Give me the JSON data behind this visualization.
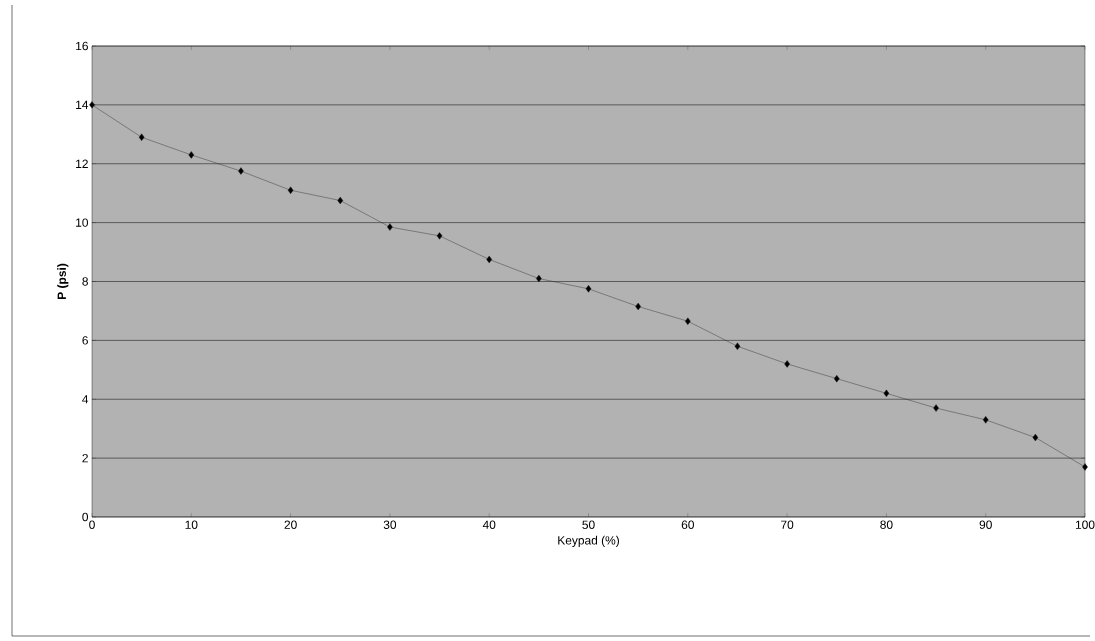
{
  "chart_data": {
    "type": "line",
    "xlabel": "Keypad (%)",
    "ylabel": "P (psi)",
    "x": [
      0,
      5,
      10,
      15,
      20,
      25,
      30,
      35,
      40,
      45,
      50,
      55,
      60,
      65,
      70,
      75,
      80,
      85,
      90,
      95,
      100
    ],
    "values": [
      14.0,
      12.9,
      12.3,
      11.75,
      11.1,
      10.75,
      9.85,
      9.55,
      8.75,
      8.1,
      7.75,
      7.15,
      6.65,
      5.8,
      5.2,
      4.7,
      4.2,
      3.7,
      3.3,
      2.7,
      1.7
    ],
    "color": "#222222",
    "marker": "diamond",
    "line_style": "solid",
    "grid": "y",
    "xlim": [
      0,
      100
    ],
    "ylim": [
      0,
      16
    ],
    "xticks": [
      0,
      10,
      20,
      30,
      40,
      50,
      60,
      70,
      80,
      90,
      100
    ],
    "yticks": [
      0,
      2,
      4,
      6,
      8,
      10,
      12,
      14,
      16
    ]
  }
}
